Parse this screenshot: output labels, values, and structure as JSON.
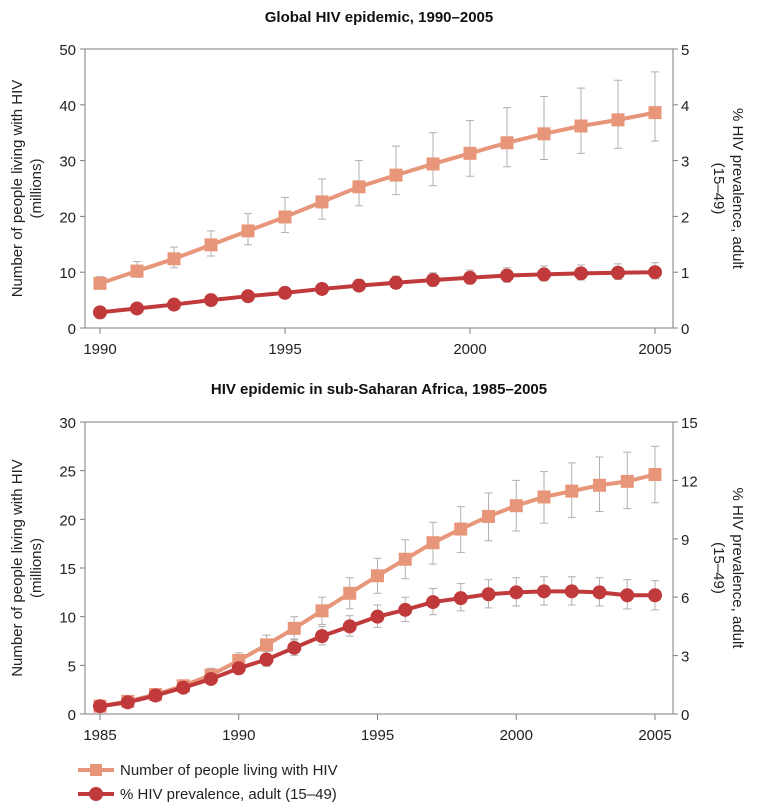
{
  "legend": {
    "items": [
      {
        "label": "Number of people living with HIV",
        "color": "#E8967A",
        "marker": "square"
      },
      {
        "label": "% HIV prevalence, adult (15–49)",
        "color": "#C0393B",
        "marker": "circle"
      }
    ]
  },
  "chart_data": [
    {
      "type": "line",
      "title": "Global HIV epidemic, 1990–2005",
      "ylabel": "Number of people living with HIV (millions)",
      "ylabel_lines": [
        "Number of people living with HIV",
        "(millions)"
      ],
      "y2label": "% HIV prevalence, adult (15–49)",
      "y2label_lines": [
        "% HIV prevalence, adult",
        "(15–49)"
      ],
      "x": [
        1990,
        1991,
        1992,
        1993,
        1994,
        1995,
        1996,
        1997,
        1998,
        1999,
        2000,
        2001,
        2002,
        2003,
        2004,
        2005
      ],
      "xticks": [
        1990,
        1995,
        2000,
        2005
      ],
      "xlim": [
        1990,
        2005
      ],
      "ylim": [
        0,
        50
      ],
      "yticks": [
        0,
        10,
        20,
        30,
        40,
        50
      ],
      "y2lim": [
        0,
        5
      ],
      "y2ticks": [
        0,
        1,
        2,
        3,
        4,
        5
      ],
      "grid": false,
      "series": [
        {
          "name": "Number of people living with HIV",
          "axis": "left",
          "color": "#E8967A",
          "marker": "square",
          "values": [
            8.0,
            10.2,
            12.4,
            14.9,
            17.4,
            19.9,
            22.6,
            25.3,
            27.4,
            29.4,
            31.3,
            33.2,
            34.8,
            36.2,
            37.3,
            38.6
          ],
          "err_low": [
            7.2,
            9.1,
            10.8,
            12.9,
            14.9,
            17.1,
            19.5,
            21.9,
            23.9,
            25.5,
            27.2,
            28.9,
            30.2,
            31.3,
            32.2,
            33.5
          ],
          "err_high": [
            9.2,
            11.9,
            14.5,
            17.4,
            20.5,
            23.4,
            26.7,
            30.0,
            32.6,
            35.0,
            37.2,
            39.5,
            41.5,
            43.0,
            44.4,
            45.9
          ]
        },
        {
          "name": "% HIV prevalence, adult (15–49)",
          "axis": "right",
          "color": "#C0393B",
          "marker": "circle",
          "values": [
            0.28,
            0.35,
            0.42,
            0.5,
            0.57,
            0.63,
            0.7,
            0.76,
            0.81,
            0.86,
            0.9,
            0.94,
            0.96,
            0.98,
            0.99,
            1.0
          ],
          "err_low": [
            0.25,
            0.31,
            0.37,
            0.44,
            0.5,
            0.55,
            0.61,
            0.67,
            0.71,
            0.75,
            0.79,
            0.82,
            0.84,
            0.86,
            0.87,
            0.88
          ],
          "err_high": [
            0.32,
            0.4,
            0.48,
            0.57,
            0.65,
            0.72,
            0.8,
            0.87,
            0.93,
            0.99,
            1.04,
            1.08,
            1.11,
            1.13,
            1.15,
            1.17
          ]
        }
      ]
    },
    {
      "type": "line",
      "title": "HIV epidemic in sub-Saharan Africa, 1985–2005",
      "ylabel": "Number of people living with HIV (millions)",
      "ylabel_lines": [
        "Number of people living with HIV",
        "(millions)"
      ],
      "y2label": "% HIV prevalence, adult (15–49)",
      "y2label_lines": [
        "% HIV prevalence, adult",
        "(15–49)"
      ],
      "x": [
        1985,
        1986,
        1987,
        1988,
        1989,
        1990,
        1991,
        1992,
        1993,
        1994,
        1995,
        1996,
        1997,
        1998,
        1999,
        2000,
        2001,
        2002,
        2003,
        2004,
        2005
      ],
      "xticks": [
        1985,
        1990,
        1995,
        2000,
        2005
      ],
      "xlim": [
        1985,
        2005
      ],
      "ylim": [
        0,
        30
      ],
      "yticks": [
        0,
        5,
        10,
        15,
        20,
        25,
        30
      ],
      "y2lim": [
        0,
        15
      ],
      "y2ticks": [
        0,
        3,
        6,
        9,
        12,
        15
      ],
      "grid": false,
      "series": [
        {
          "name": "Number of people living with HIV",
          "axis": "left",
          "color": "#E8967A",
          "marker": "square",
          "values": [
            0.8,
            1.3,
            2.0,
            2.9,
            4.0,
            5.5,
            7.1,
            8.8,
            10.6,
            12.4,
            14.2,
            15.9,
            17.6,
            19.0,
            20.3,
            21.4,
            22.3,
            22.9,
            23.5,
            23.9,
            24.6
          ],
          "err_low": [
            0.6,
            1.0,
            1.6,
            2.4,
            3.4,
            4.7,
            6.1,
            7.6,
            9.2,
            10.8,
            12.4,
            13.9,
            15.4,
            16.6,
            17.8,
            18.8,
            19.6,
            20.2,
            20.8,
            21.1,
            21.7
          ],
          "err_high": [
            1.0,
            1.6,
            2.4,
            3.4,
            4.7,
            6.3,
            8.1,
            10.0,
            12.0,
            14.0,
            16.0,
            17.9,
            19.7,
            21.3,
            22.7,
            24.0,
            24.9,
            25.8,
            26.4,
            26.9,
            27.5
          ]
        },
        {
          "name": "% HIV prevalence, adult (15–49)",
          "axis": "right",
          "color": "#C0393B",
          "marker": "circle",
          "values": [
            0.4,
            0.6,
            0.95,
            1.35,
            1.8,
            2.35,
            2.8,
            3.4,
            4.0,
            4.5,
            5.0,
            5.35,
            5.75,
            5.95,
            6.15,
            6.25,
            6.3,
            6.3,
            6.25,
            6.1,
            6.1
          ],
          "err_low": [
            0.3,
            0.5,
            0.8,
            1.15,
            1.55,
            2.05,
            2.45,
            3.0,
            3.55,
            4.0,
            4.45,
            4.75,
            5.1,
            5.3,
            5.45,
            5.55,
            5.6,
            5.6,
            5.55,
            5.4,
            5.35
          ],
          "err_high": [
            0.5,
            0.75,
            1.1,
            1.55,
            2.05,
            2.65,
            3.2,
            3.85,
            4.5,
            5.05,
            5.6,
            6.0,
            6.45,
            6.7,
            6.9,
            7.0,
            7.05,
            7.05,
            7.0,
            6.9,
            6.85
          ]
        }
      ]
    }
  ]
}
